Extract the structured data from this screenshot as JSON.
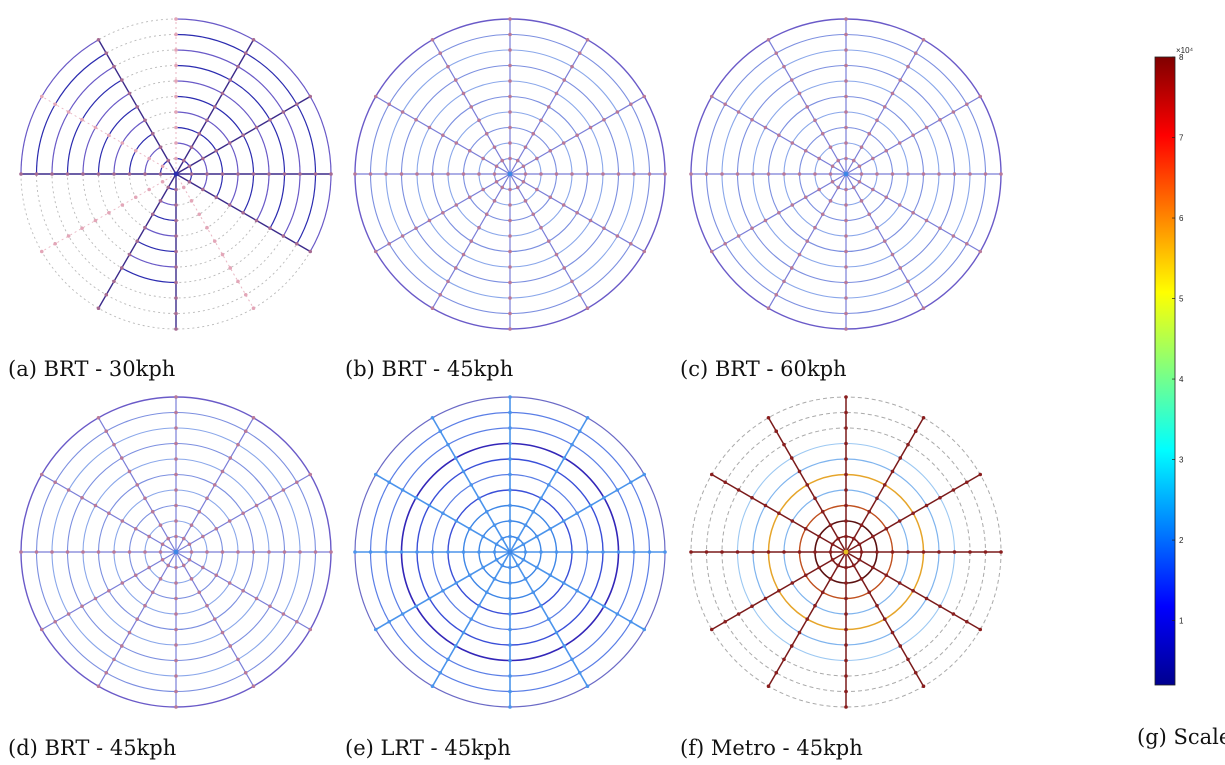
{
  "panels": [
    {
      "id": "a",
      "caption": "(a) BRT - 30kph"
    },
    {
      "id": "b",
      "caption": "(b) BRT - 45kph"
    },
    {
      "id": "c",
      "caption": "(c) BRT - 60kph"
    },
    {
      "id": "d",
      "caption": "(d) BRT - 45kph"
    },
    {
      "id": "e",
      "caption": "(e) LRT - 45kph"
    },
    {
      "id": "f",
      "caption": "(f) Metro - 45kph"
    }
  ],
  "scale": {
    "caption": "(g) Scale",
    "exponent_label": "×10⁴",
    "ticks": [
      "1",
      "2",
      "3",
      "4",
      "5",
      "6",
      "7",
      "8"
    ],
    "min": 0.2,
    "max": 8,
    "colormap": [
      "#00008f",
      "#0000ff",
      "#0080ff",
      "#00ffff",
      "#80ff80",
      "#ffff00",
      "#ff8000",
      "#ff0000",
      "#800000"
    ]
  },
  "colors": {
    "blue_purple": "#6a5ac8",
    "dark_purple": "#3b2a8a",
    "light_blue": "#7fb4ee",
    "mid_blue": "#3d86e6",
    "navy": "#2b2bb0",
    "dark_red": "#7a1a1a",
    "gold": "#e6a52a",
    "faint_grey": "#b9b9b9",
    "faint_pink": "#e8b6c2"
  }
}
